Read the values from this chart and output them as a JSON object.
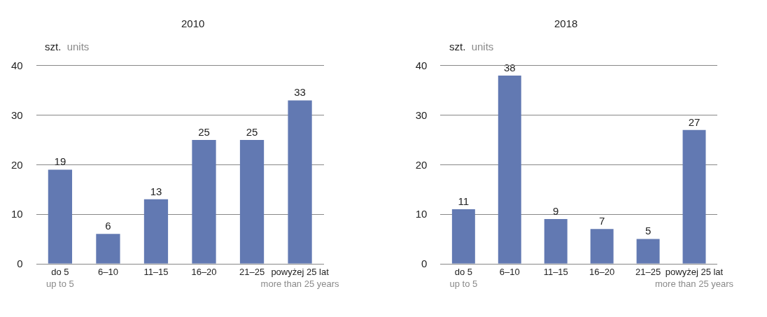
{
  "chart_data": [
    {
      "type": "bar",
      "title": "2010",
      "ylabel": "szt. units",
      "categories": [
        "do 5\nup to 5",
        "6–10",
        "11–15",
        "16–20",
        "21–25",
        "powyżej 25 lat\nmore than 25 years"
      ],
      "values": [
        19,
        6,
        13,
        25,
        25,
        33
      ],
      "color": "#6279b2",
      "ylim": [
        0,
        40
      ],
      "yticks": [
        0,
        10,
        20,
        30,
        40
      ],
      "grid": "y",
      "data_labels": true
    },
    {
      "type": "bar",
      "title": "2018",
      "ylabel": "szt. units",
      "categories": [
        "do 5\nup to 5",
        "6–10",
        "11–15",
        "16–20",
        "21–25",
        "powyżej 25 lat\nmore than 25 years"
      ],
      "values": [
        11,
        38,
        9,
        7,
        5,
        27
      ],
      "color": "#6279b2",
      "ylim": [
        0,
        40
      ],
      "yticks": [
        0,
        10,
        20,
        30,
        40
      ],
      "grid": "y",
      "data_labels": true
    }
  ]
}
